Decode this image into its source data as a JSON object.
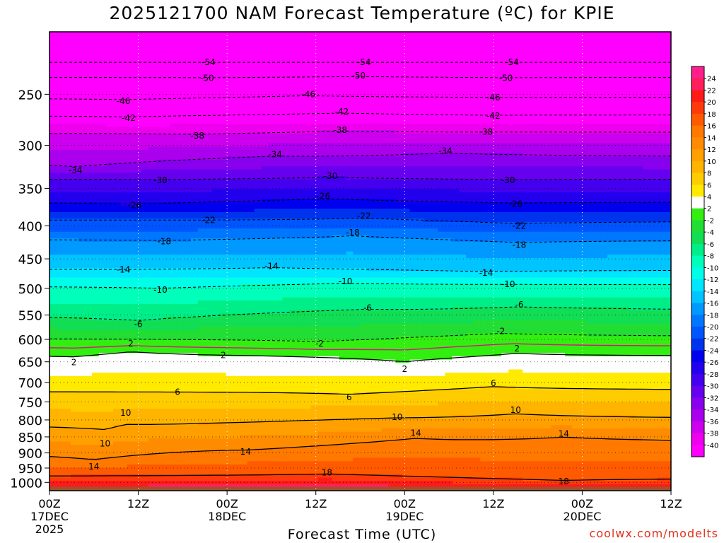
{
  "title": "2025121700 NAM Forecast Temperature (ºC) for KPIE",
  "credit": "coolwx.com/modelts",
  "chart_data": {
    "type": "heatmap",
    "title": "2025121700 NAM Forecast Temperature (ºC) for KPIE",
    "xlabel": "Forecast Time (UTC)",
    "ylabel": "",
    "y_scale": "log",
    "y_reversed": true,
    "ylim": [
      1030,
      200
    ],
    "y_ticks": [
      250,
      300,
      350,
      400,
      450,
      500,
      550,
      600,
      650,
      700,
      750,
      800,
      850,
      900,
      950,
      1000
    ],
    "xlim": [
      0,
      84
    ],
    "x_ticks": [
      {
        "hour": 0,
        "label": "00Z",
        "sub": "17DEC",
        "sub2": "2025"
      },
      {
        "hour": 12,
        "label": "12Z",
        "sub": "",
        "sub2": ""
      },
      {
        "hour": 24,
        "label": "00Z",
        "sub": "18DEC",
        "sub2": ""
      },
      {
        "hour": 36,
        "label": "12Z",
        "sub": "",
        "sub2": ""
      },
      {
        "hour": 48,
        "label": "00Z",
        "sub": "19DEC",
        "sub2": ""
      },
      {
        "hour": 60,
        "label": "12Z",
        "sub": "",
        "sub2": ""
      },
      {
        "hour": 72,
        "label": "00Z",
        "sub": "20DEC",
        "sub2": ""
      },
      {
        "hour": 84,
        "label": "12Z",
        "sub": "",
        "sub2": ""
      }
    ],
    "grid": true,
    "colorbar": {
      "labels": [
        24,
        22,
        20,
        18,
        16,
        14,
        12,
        10,
        8,
        6,
        4,
        2,
        -2,
        -4,
        -6,
        -8,
        -10,
        -12,
        -14,
        -16,
        -18,
        -20,
        -22,
        -24,
        -26,
        -28,
        -30,
        -32,
        -34,
        -36,
        -38,
        -40
      ],
      "colors": [
        "#ff1f8c",
        "#ff1f5c",
        "#ff1a1a",
        "#ff3a0a",
        "#ff5a00",
        "#ff7800",
        "#ff8c00",
        "#ffa000",
        "#ffb400",
        "#ffcc00",
        "#ffea00",
        "#ffffff",
        "#33ee11",
        "#22dd33",
        "#11dd55",
        "#00ee88",
        "#00ffbb",
        "#00ffe8",
        "#00e6ff",
        "#00c4ff",
        "#0099ff",
        "#0077ff",
        "#0055ff",
        "#0033ee",
        "#0000ee",
        "#2200ee",
        "#4400ee",
        "#6600ee",
        "#8800ee",
        "#aa00ee",
        "#cc00ee",
        "#ee00ee",
        "#ff00ff"
      ]
    },
    "contour_labels": [
      {
        "value": "-54",
        "hour": 21.5,
        "p": 223
      },
      {
        "value": "-54",
        "hour": 42.5,
        "p": 223
      },
      {
        "value": "-54",
        "hour": 62.5,
        "p": 223
      },
      {
        "value": "-50",
        "hour": 21.3,
        "p": 236
      },
      {
        "value": "-50",
        "hour": 41.8,
        "p": 234
      },
      {
        "value": "-50",
        "hour": 61.7,
        "p": 236
      },
      {
        "value": "-46",
        "hour": 10,
        "p": 256
      },
      {
        "value": "-46",
        "hour": 35,
        "p": 250
      },
      {
        "value": "-46",
        "hour": 60,
        "p": 253
      },
      {
        "value": "-42",
        "hour": 10.7,
        "p": 272
      },
      {
        "value": "-42",
        "hour": 39.5,
        "p": 266
      },
      {
        "value": "-42",
        "hour": 60,
        "p": 270
      },
      {
        "value": "-38",
        "hour": 20,
        "p": 290
      },
      {
        "value": "-38",
        "hour": 39.3,
        "p": 284
      },
      {
        "value": "-38",
        "hour": 59,
        "p": 286
      },
      {
        "value": "-34",
        "hour": 3.5,
        "p": 328
      },
      {
        "value": "-34",
        "hour": 30.5,
        "p": 310
      },
      {
        "value": "-34",
        "hour": 53.5,
        "p": 306
      },
      {
        "value": "-30",
        "hour": 15,
        "p": 340
      },
      {
        "value": "-30",
        "hour": 38,
        "p": 335
      },
      {
        "value": "-30",
        "hour": 62,
        "p": 340
      },
      {
        "value": "-26",
        "hour": 11.5,
        "p": 372
      },
      {
        "value": "-26",
        "hour": 37,
        "p": 360
      },
      {
        "value": "-26",
        "hour": 63,
        "p": 370
      },
      {
        "value": "-22",
        "hour": 21.5,
        "p": 392
      },
      {
        "value": "-22",
        "hour": 42.5,
        "p": 386
      },
      {
        "value": "-22",
        "hour": 63.5,
        "p": 400
      },
      {
        "value": "-18",
        "hour": 15.5,
        "p": 423
      },
      {
        "value": "-18",
        "hour": 41,
        "p": 410
      },
      {
        "value": "-18",
        "hour": 63.5,
        "p": 428
      },
      {
        "value": "-14",
        "hour": 10,
        "p": 468
      },
      {
        "value": "-14",
        "hour": 30,
        "p": 462
      },
      {
        "value": "-14",
        "hour": 59,
        "p": 473
      },
      {
        "value": "-10",
        "hour": 15,
        "p": 503
      },
      {
        "value": "-10",
        "hour": 40,
        "p": 488
      },
      {
        "value": "-10",
        "hour": 62,
        "p": 493
      },
      {
        "value": "-6",
        "hour": 12,
        "p": 568
      },
      {
        "value": "-6",
        "hour": 43,
        "p": 536
      },
      {
        "value": "-6",
        "hour": 63.5,
        "p": 530
      },
      {
        "value": "-2",
        "hour": 36.5,
        "p": 609
      },
      {
        "value": "-2",
        "hour": 61,
        "p": 583
      },
      {
        "value": "2",
        "hour": 11,
        "p": 609
      },
      {
        "value": "2",
        "hour": 3.3,
        "p": 651
      },
      {
        "value": "2",
        "hour": 23.5,
        "p": 635
      },
      {
        "value": "2",
        "hour": 48,
        "p": 667
      },
      {
        "value": "2",
        "hour": 63.2,
        "p": 620
      },
      {
        "value": "6",
        "hour": 17.3,
        "p": 724
      },
      {
        "value": "6",
        "hour": 40.5,
        "p": 738
      },
      {
        "value": "6",
        "hour": 60,
        "p": 702
      },
      {
        "value": "10",
        "hour": 10.3,
        "p": 780
      },
      {
        "value": "10",
        "hour": 47,
        "p": 792
      },
      {
        "value": "10",
        "hour": 63,
        "p": 772
      },
      {
        "value": "10",
        "hour": 7.5,
        "p": 871
      },
      {
        "value": "14",
        "hour": 49.5,
        "p": 838
      },
      {
        "value": "14",
        "hour": 69.5,
        "p": 840
      },
      {
        "value": "14",
        "hour": 26.5,
        "p": 896
      },
      {
        "value": "14",
        "hour": 6,
        "p": 945
      },
      {
        "value": "18",
        "hour": 37.5,
        "p": 966
      },
      {
        "value": "18",
        "hour": 69.5,
        "p": 997
      }
    ]
  }
}
